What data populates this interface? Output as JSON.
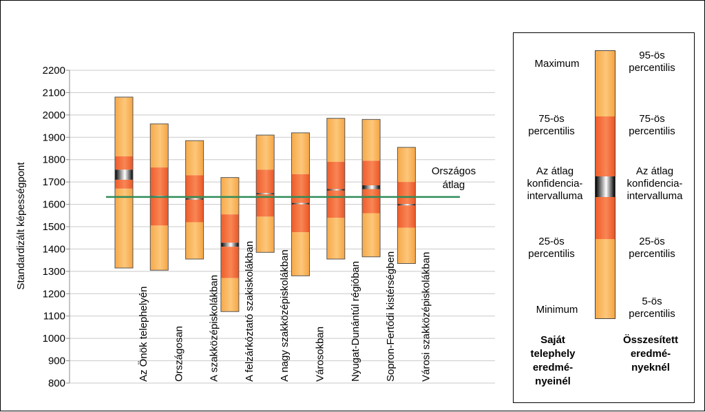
{
  "chart_data": {
    "type": "boxplot",
    "ylabel": "Standardizált képességpont",
    "ylim": [
      800,
      2200
    ],
    "yticks": [
      800,
      900,
      1000,
      1100,
      1200,
      1300,
      1400,
      1500,
      1600,
      1700,
      1800,
      1900,
      2000,
      2100,
      2200
    ],
    "ytick_labels": [
      "800",
      "900",
      "1000",
      "1100",
      "1200",
      "1300",
      "1400",
      "1500",
      "1600",
      "1700",
      "1800",
      "1900",
      "2000",
      "2100",
      "2200"
    ],
    "grid": true,
    "categories": [
      "Az Önök telephelyén",
      "Országosan",
      "A szakközépiskolákban",
      "A felzárkóztató szakiskolákban",
      "A nagy szakközépiskolákban",
      "Városokban",
      "Nyugat-Dunántúl régióban",
      "Sopron-Fertődi kistérségben",
      "Városi szakközépiskolákban"
    ],
    "series": [
      {
        "name": "Az Önök telephelyén",
        "low": 1315,
        "q1": 1670,
        "ci_low": 1710,
        "ci_high": 1755,
        "q3": 1815,
        "high": 2080
      },
      {
        "name": "Országosan",
        "low": 1305,
        "q1": 1505,
        "ci_low": 1634,
        "ci_high": 1638,
        "q3": 1765,
        "high": 1960
      },
      {
        "name": "A szakközépiskolákban",
        "low": 1355,
        "q1": 1520,
        "ci_low": 1621,
        "ci_high": 1627,
        "q3": 1730,
        "high": 1885
      },
      {
        "name": "A felzárkóztató szakiskolákban",
        "low": 1120,
        "q1": 1270,
        "ci_low": 1410,
        "ci_high": 1428,
        "q3": 1555,
        "high": 1720
      },
      {
        "name": "A nagy szakközépiskolákban",
        "low": 1385,
        "q1": 1545,
        "ci_low": 1645,
        "ci_high": 1650,
        "q3": 1755,
        "high": 1910
      },
      {
        "name": "Városokban",
        "low": 1280,
        "q1": 1475,
        "ci_low": 1600,
        "ci_high": 1606,
        "q3": 1735,
        "high": 1920
      },
      {
        "name": "Nyugat-Dunántúl régióban",
        "low": 1355,
        "q1": 1540,
        "ci_low": 1662,
        "ci_high": 1668,
        "q3": 1790,
        "high": 1985
      },
      {
        "name": "Sopron-Fertődi kistérségben",
        "low": 1365,
        "q1": 1560,
        "ci_low": 1668,
        "ci_high": 1685,
        "q3": 1795,
        "high": 1980
      },
      {
        "name": "Városi szakközépiskolákban",
        "low": 1335,
        "q1": 1495,
        "ci_low": 1595,
        "ci_high": 1601,
        "q3": 1700,
        "high": 1855
      }
    ],
    "reference_line": {
      "value": 1633,
      "label_line1": "Országos",
      "label_line2": "átlag",
      "color": "#2e8b57"
    },
    "colors": {
      "outer": "#f9b55a",
      "inner": "#f26a35",
      "ci": "#111111",
      "grid": "#c8c8c8"
    }
  },
  "legend": {
    "left_labels": [
      "Maximum",
      "75-ös percentilis",
      "Az átlag konfidencia-intervalluma",
      "25-ös percentilis",
      "Minimum"
    ],
    "right_labels": [
      "95-ös percentilis",
      "75-ös percentilis",
      "Az átlag konfidencia-intervalluma",
      "25-ös percentilis",
      "5-ös percentilis"
    ],
    "left_heading": "Saját telephely eredmé-nyeinél",
    "right_heading": "Összesített eredmé-nyeknél"
  }
}
